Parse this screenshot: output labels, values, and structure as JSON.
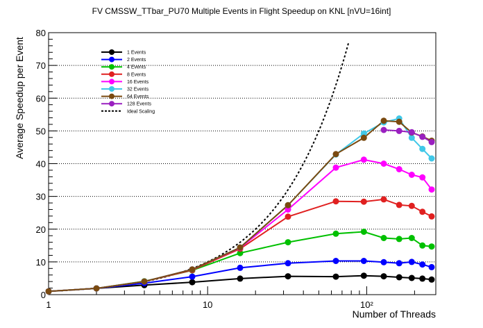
{
  "chart_data": {
    "type": "line",
    "title": "FV CMSSW_TTbar_PU70 Multiple Events in Flight Speedup on KNL [nVU=16int]",
    "xlabel": "Number of Threads",
    "ylabel": "Average Speedup per Event",
    "xscale": "log",
    "xlim": [
      1,
      272
    ],
    "ylim": [
      0,
      80
    ],
    "x_ticks": [
      {
        "value": 1,
        "label": "1"
      },
      {
        "value": 10,
        "label": "10"
      },
      {
        "value": 100,
        "label": "10²"
      }
    ],
    "y_ticks": [
      0,
      10,
      20,
      30,
      40,
      50,
      60,
      70,
      80
    ],
    "y_gridlines": [
      10,
      20,
      30,
      40,
      50,
      60,
      70
    ],
    "grid": "horizontal dotted",
    "legend_position": "top-left",
    "series": [
      {
        "name": "1 Events",
        "color": "#000000",
        "x": [
          1,
          2,
          4,
          8,
          16,
          32,
          64,
          96,
          128,
          160,
          192,
          224,
          256
        ],
        "y": [
          1.0,
          1.9,
          2.9,
          3.8,
          4.9,
          5.6,
          5.5,
          5.8,
          5.6,
          5.3,
          5.1,
          4.9,
          4.6
        ]
      },
      {
        "name": "2 Events",
        "color": "#0000ff",
        "x": [
          1,
          2,
          4,
          8,
          16,
          32,
          64,
          96,
          128,
          160,
          192,
          224,
          256
        ],
        "y": [
          1.0,
          1.9,
          3.5,
          5.5,
          8.2,
          9.6,
          10.3,
          10.3,
          9.9,
          9.6,
          10.0,
          9.2,
          8.4
        ]
      },
      {
        "name": "4 Events",
        "color": "#00c000",
        "x": [
          1,
          2,
          4,
          8,
          16,
          32,
          64,
          96,
          128,
          160,
          192,
          224,
          256
        ],
        "y": [
          1.0,
          1.9,
          4.1,
          7.4,
          12.7,
          16.0,
          18.6,
          19.2,
          17.3,
          17.0,
          17.3,
          15.0,
          14.7
        ]
      },
      {
        "name": "8 Events",
        "color": "#e02020",
        "x": [
          1,
          2,
          4,
          8,
          16,
          32,
          64,
          96,
          128,
          160,
          192,
          224,
          256
        ],
        "y": [
          1.0,
          1.9,
          4.0,
          7.5,
          14.0,
          23.8,
          28.5,
          28.4,
          29.1,
          27.4,
          27.1,
          25.3,
          23.9
        ]
      },
      {
        "name": "16 Events",
        "color": "#ff00ff",
        "x": [
          1,
          2,
          4,
          8,
          16,
          32,
          64,
          96,
          128,
          160,
          192,
          224,
          256
        ],
        "y": [
          1.0,
          1.9,
          4.0,
          7.7,
          14.3,
          26.0,
          38.8,
          41.2,
          40.0,
          38.3,
          36.6,
          35.8,
          32.1
        ]
      },
      {
        "name": "32 Events",
        "color": "#40c8e8",
        "x": [
          1,
          2,
          4,
          8,
          16,
          32,
          64,
          96,
          128,
          160,
          192,
          224,
          256
        ],
        "y": [
          1.0,
          1.9,
          4.0,
          7.7,
          14.4,
          27.3,
          42.8,
          49.2,
          52.6,
          53.8,
          47.9,
          44.5,
          41.6
        ]
      },
      {
        "name": "64 Events",
        "color": "#7a4a10",
        "x": [
          1,
          2,
          4,
          8,
          16,
          32,
          64,
          96,
          128,
          160,
          192,
          224,
          256
        ],
        "y": [
          1.0,
          1.9,
          4.0,
          7.7,
          14.4,
          27.3,
          42.9,
          47.9,
          53.1,
          52.8,
          49.5,
          48.3,
          47.0
        ]
      },
      {
        "name": "128 Events",
        "color": "#9a20c0",
        "x": [
          128,
          160,
          192,
          224,
          256
        ],
        "y": [
          50.3,
          50.0,
          49.6,
          48.2,
          46.6
        ]
      }
    ],
    "ideal_scaling": {
      "name": "Ideal Scaling",
      "color": "#000000",
      "x_max": 77
    }
  }
}
